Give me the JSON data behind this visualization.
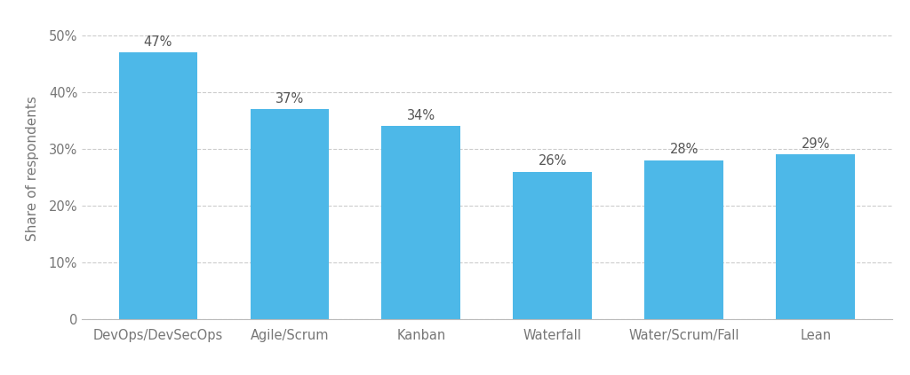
{
  "categories": [
    "DevOps/DevSecOps",
    "Agile/Scrum",
    "Kanban",
    "Waterfall",
    "Water/Scrum/Fall",
    "Lean"
  ],
  "values": [
    47,
    37,
    34,
    26,
    28,
    29
  ],
  "bar_color": "#4DB8E8",
  "background_color": "#ffffff",
  "plot_bg_color": "#f9f9f9",
  "ylabel": "Share of respondents",
  "ylim": [
    0,
    53
  ],
  "yticks": [
    0,
    10,
    20,
    30,
    40,
    50
  ],
  "ytick_labels": [
    "0",
    "10%",
    "20%",
    "30%",
    "40%",
    "50%"
  ],
  "label_color": "#555555",
  "grid_color": "#cccccc",
  "tick_color": "#777777",
  "bar_labels": [
    "47%",
    "37%",
    "34%",
    "26%",
    "28%",
    "29%"
  ],
  "label_fontsize": 10.5,
  "ylabel_fontsize": 11,
  "xtick_fontsize": 10.5,
  "ytick_fontsize": 10.5
}
